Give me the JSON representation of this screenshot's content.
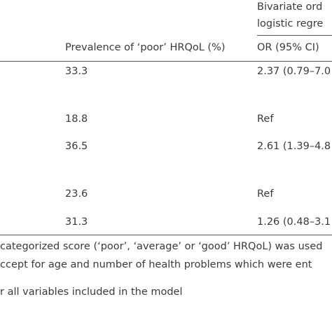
{
  "table": {
    "group_header": [
      "Bivariate ord",
      "logistic regre"
    ],
    "columns": [
      "Prevalence of ‘poor’ HRQoL (%)",
      "OR (95% CI)"
    ],
    "rows": [
      [
        "33.3",
        "2.37 (0.79–7.0"
      ],
      [
        "18.8",
        "Ref"
      ],
      [
        "36.5",
        "2.61 (1.39–4.8"
      ],
      [
        "23.6",
        "Ref"
      ],
      [
        "31.3",
        "1.26 (0.48–3.1"
      ]
    ]
  },
  "footnotes": [
    "categorized score (‘poor’, ‘average’ or ‘good’ HRQoL) was used",
    "ccept for age and number of health problems which were ent",
    "r all variables included in the model"
  ]
}
